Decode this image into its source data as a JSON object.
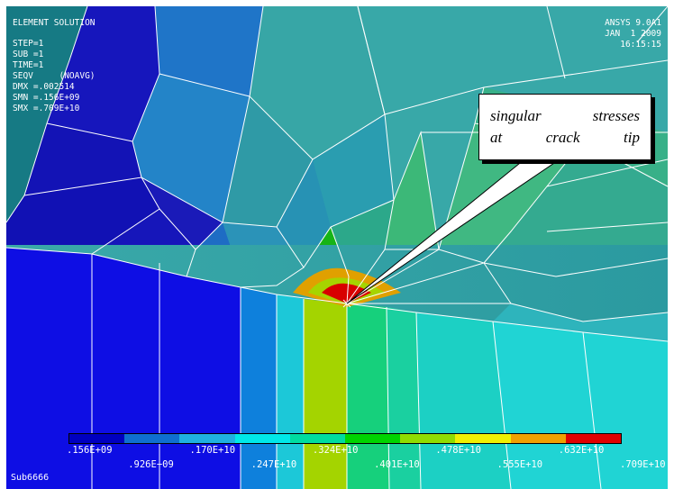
{
  "window": {
    "title": "ELEMENT SOLUTION"
  },
  "solution_info": [
    "STEP=1",
    "SUB =1",
    "TIME=1",
    "SEQV     (NOAVG)",
    "DMX =.002514",
    "SMN =.156E+09",
    "SMX =.709E+10"
  ],
  "stamp": {
    "version": "ANSYS 9.0A1",
    "date": "JAN  1 2009",
    "time": "16:15:15"
  },
  "callout": {
    "line1": "singular stresses",
    "line2": "at crack tip"
  },
  "legend": {
    "ticks": [
      ".156E+09",
      ".926E+09",
      ".170E+10",
      ".247E+10",
      ".324E+10",
      ".401E+10",
      ".478E+10",
      ".555E+10",
      ".632E+10",
      ".709E+10"
    ],
    "colors": [
      "#0000bf",
      "#0f6fd0",
      "#1fb0e0",
      "#00e8e8",
      "#00dca0",
      "#00d400",
      "#90dc00",
      "#f0f000",
      "#f0a000",
      "#e00000"
    ]
  },
  "footer": {
    "subtitle": "Sub6666"
  },
  "colors": {
    "frame": "#ffffff",
    "background_teal": "#3caaaa",
    "dark_blue": "#1212b8",
    "medium_blue": "#1878c8",
    "teal_mesh": "#34a6a6",
    "green": "#00c400",
    "light_green": "#3ccc7c",
    "yellow_green": "#a0d800",
    "orange": "#e09c00",
    "red": "#d20000"
  }
}
